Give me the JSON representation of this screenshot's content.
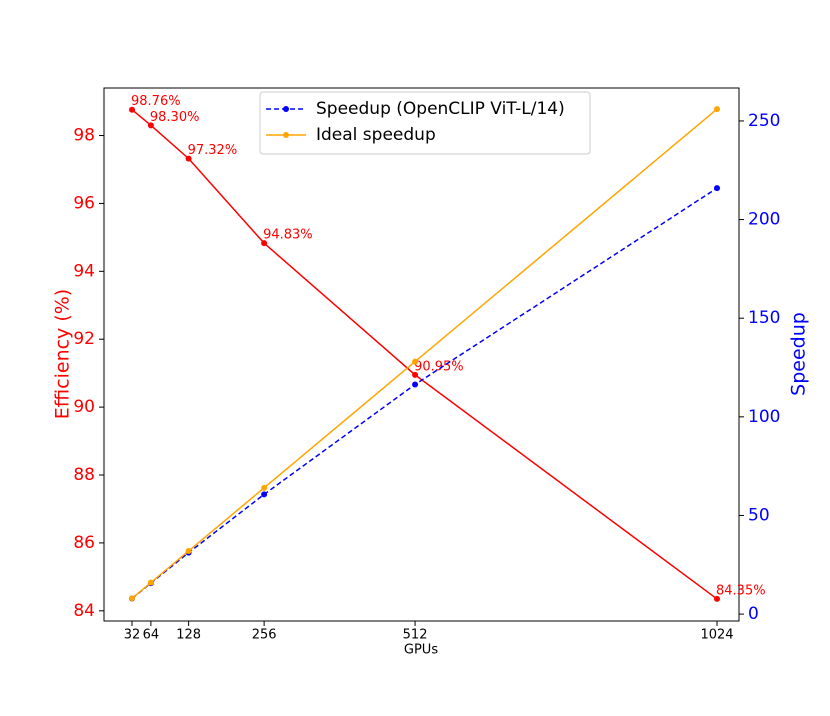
{
  "chart_data": {
    "type": "line",
    "x": [
      32,
      64,
      128,
      256,
      512,
      1024
    ],
    "xlim": [
      -15.5,
      1061.3
    ],
    "xticks": [
      32,
      64,
      128,
      256,
      512,
      1024
    ],
    "xlabel": "GPUs",
    "ylabel": "Efficiency (%)",
    "ylim": [
      83.7,
      99.4
    ],
    "yticks": [
      84,
      86,
      88,
      90,
      92,
      94,
      96,
      98
    ],
    "ycolor": "#ff0000",
    "y2label": "Speedup",
    "y2lim": [
      -3.5,
      266.7
    ],
    "y2ticks": [
      0,
      50,
      100,
      150,
      200,
      250
    ],
    "y2color": "#0000ff",
    "legend": "upper center",
    "series": [
      {
        "color": "#ff0000",
        "values": [
          98.76,
          98.3,
          97.32,
          94.83,
          90.95,
          84.35
        ],
        "value_labels": [
          "98.76%",
          "98.30%",
          "97.32%",
          "94.83%",
          "90.95%",
          "84.35%"
        ]
      },
      {
        "name": "Speedup (OpenCLIP ViT-L/14)",
        "color": "#0000ff",
        "dashed": true,
        "axis": "y2",
        "values": [
          7.9,
          15.73,
          31.14,
          60.69,
          116.42,
          215.94
        ]
      },
      {
        "name": "Ideal speedup",
        "color": "#ffa500",
        "axis": "y2",
        "values": [
          8,
          16,
          32,
          64,
          128,
          256
        ]
      }
    ]
  }
}
